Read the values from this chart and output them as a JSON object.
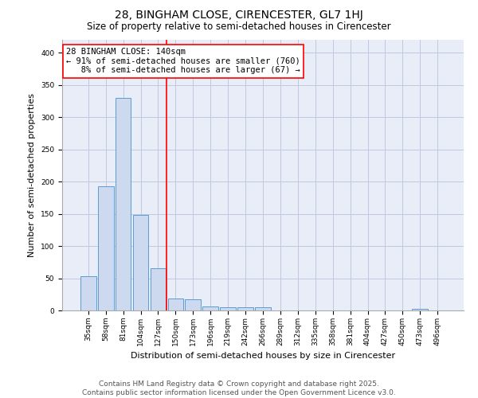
{
  "title": "28, BINGHAM CLOSE, CIRENCESTER, GL7 1HJ",
  "subtitle": "Size of property relative to semi-detached houses in Cirencester",
  "xlabel": "Distribution of semi-detached houses by size in Cirencester",
  "ylabel": "Number of semi-detached properties",
  "bin_labels": [
    "35sqm",
    "58sqm",
    "81sqm",
    "104sqm",
    "127sqm",
    "150sqm",
    "173sqm",
    "196sqm",
    "219sqm",
    "242sqm",
    "266sqm",
    "289sqm",
    "312sqm",
    "335sqm",
    "358sqm",
    "381sqm",
    "404sqm",
    "427sqm",
    "450sqm",
    "473sqm",
    "496sqm"
  ],
  "bar_values": [
    53,
    193,
    330,
    148,
    66,
    18,
    17,
    6,
    5,
    5,
    5,
    0,
    0,
    0,
    0,
    0,
    0,
    0,
    0,
    3,
    0
  ],
  "bar_color": "#ccd9ee",
  "bar_edge_color": "#5b9bd5",
  "vline_x_index": 4.5,
  "vline_color": "red",
  "annotation_text": "28 BINGHAM CLOSE: 140sqm\n← 91% of semi-detached houses are smaller (760)\n   8% of semi-detached houses are larger (67) →",
  "annotation_box_color": "white",
  "annotation_box_edge_color": "red",
  "ylim": [
    0,
    420
  ],
  "yticks": [
    0,
    50,
    100,
    150,
    200,
    250,
    300,
    350,
    400
  ],
  "grid_color": "#c0c8e0",
  "background_color": "#e8edf8",
  "footer_text": "Contains HM Land Registry data © Crown copyright and database right 2025.\nContains public sector information licensed under the Open Government Licence v3.0.",
  "title_fontsize": 10,
  "subtitle_fontsize": 8.5,
  "xlabel_fontsize": 8,
  "ylabel_fontsize": 8,
  "tick_fontsize": 6.5,
  "annotation_fontsize": 7.5,
  "footer_fontsize": 6.5
}
